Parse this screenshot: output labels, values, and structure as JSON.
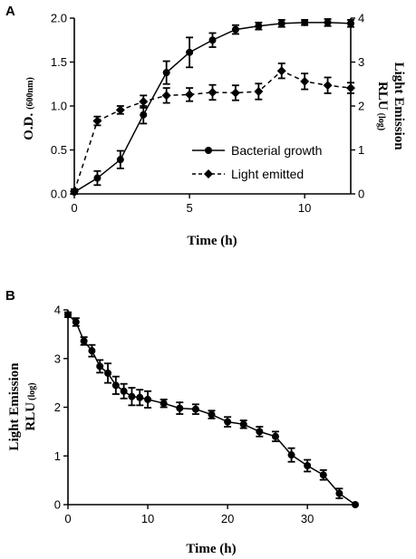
{
  "figure": {
    "panel_a_letter": "A",
    "panel_b_letter": "B"
  },
  "chart_data": [
    {
      "type": "line",
      "panel": "A",
      "xlabel": "Time (h)",
      "ylabel_left": "O.D.",
      "ylabel_left_sub": "(600nm)",
      "ylabel_right_line1": "Light Emission",
      "ylabel_right_line2": "RLU",
      "ylabel_right_sub": "(log)",
      "xlim": [
        0,
        12
      ],
      "ylim_left": [
        0,
        2.0
      ],
      "ylim_right": [
        0,
        4
      ],
      "xticks": [
        0,
        5,
        10
      ],
      "yticks_left": [
        "0.0",
        "0.5",
        "1.0",
        "1.5",
        "2.0"
      ],
      "yticks_right": [
        "0",
        "1",
        "2",
        "3",
        "4"
      ],
      "legend_position": "lower-right",
      "grid": false,
      "series": [
        {
          "name": "Bacterial growth",
          "axis": "left",
          "style": "solid",
          "marker": "circle",
          "x": [
            0,
            1,
            2,
            3,
            4,
            5,
            6,
            7,
            8,
            9,
            10,
            11,
            12
          ],
          "y": [
            0.02,
            0.18,
            0.39,
            0.9,
            1.38,
            1.61,
            1.75,
            1.87,
            1.91,
            1.94,
            1.95,
            1.95,
            1.94
          ],
          "err": [
            0.03,
            0.08,
            0.1,
            0.1,
            0.13,
            0.17,
            0.08,
            0.05,
            0.04,
            0.04,
            0.03,
            0.04,
            0.04
          ]
        },
        {
          "name": "Light emitted",
          "axis": "right",
          "style": "dashed",
          "marker": "diamond",
          "x": [
            0,
            1,
            2,
            3,
            4,
            5,
            6,
            7,
            8,
            9,
            10,
            11,
            12
          ],
          "y": [
            0.06,
            1.66,
            1.91,
            2.1,
            2.24,
            2.26,
            2.31,
            2.3,
            2.33,
            2.8,
            2.56,
            2.47,
            2.41
          ],
          "err": [
            0.05,
            0.1,
            0.09,
            0.14,
            0.17,
            0.15,
            0.17,
            0.17,
            0.18,
            0.17,
            0.18,
            0.18,
            0.12
          ]
        }
      ]
    },
    {
      "type": "line",
      "panel": "B",
      "xlabel": "Time (h)",
      "ylabel_line1": "Light Emission",
      "ylabel_line2": "RLU",
      "ylabel_sub": "(log)",
      "xlim": [
        0,
        36
      ],
      "ylim": [
        0,
        4
      ],
      "xticks": [
        0,
        10,
        20,
        30
      ],
      "yticks": [
        "0",
        "1",
        "2",
        "3",
        "4"
      ],
      "grid": false,
      "series": [
        {
          "style": "solid",
          "marker": "circle",
          "x": [
            0,
            1,
            2,
            3,
            4,
            5,
            6,
            7,
            8,
            9,
            10,
            12,
            14,
            16,
            18,
            20,
            22,
            24,
            26,
            28,
            30,
            32,
            34,
            36
          ],
          "y": [
            3.9,
            3.75,
            3.36,
            3.16,
            2.84,
            2.7,
            2.45,
            2.33,
            2.22,
            2.2,
            2.16,
            2.08,
            1.98,
            1.96,
            1.85,
            1.7,
            1.65,
            1.5,
            1.4,
            1.02,
            0.8,
            0.61,
            0.23,
            0.0
          ],
          "err": [
            0.05,
            0.08,
            0.08,
            0.12,
            0.13,
            0.2,
            0.18,
            0.15,
            0.18,
            0.16,
            0.17,
            0.08,
            0.12,
            0.1,
            0.08,
            0.1,
            0.08,
            0.1,
            0.1,
            0.14,
            0.12,
            0.1,
            0.1,
            0.0
          ]
        }
      ]
    }
  ]
}
